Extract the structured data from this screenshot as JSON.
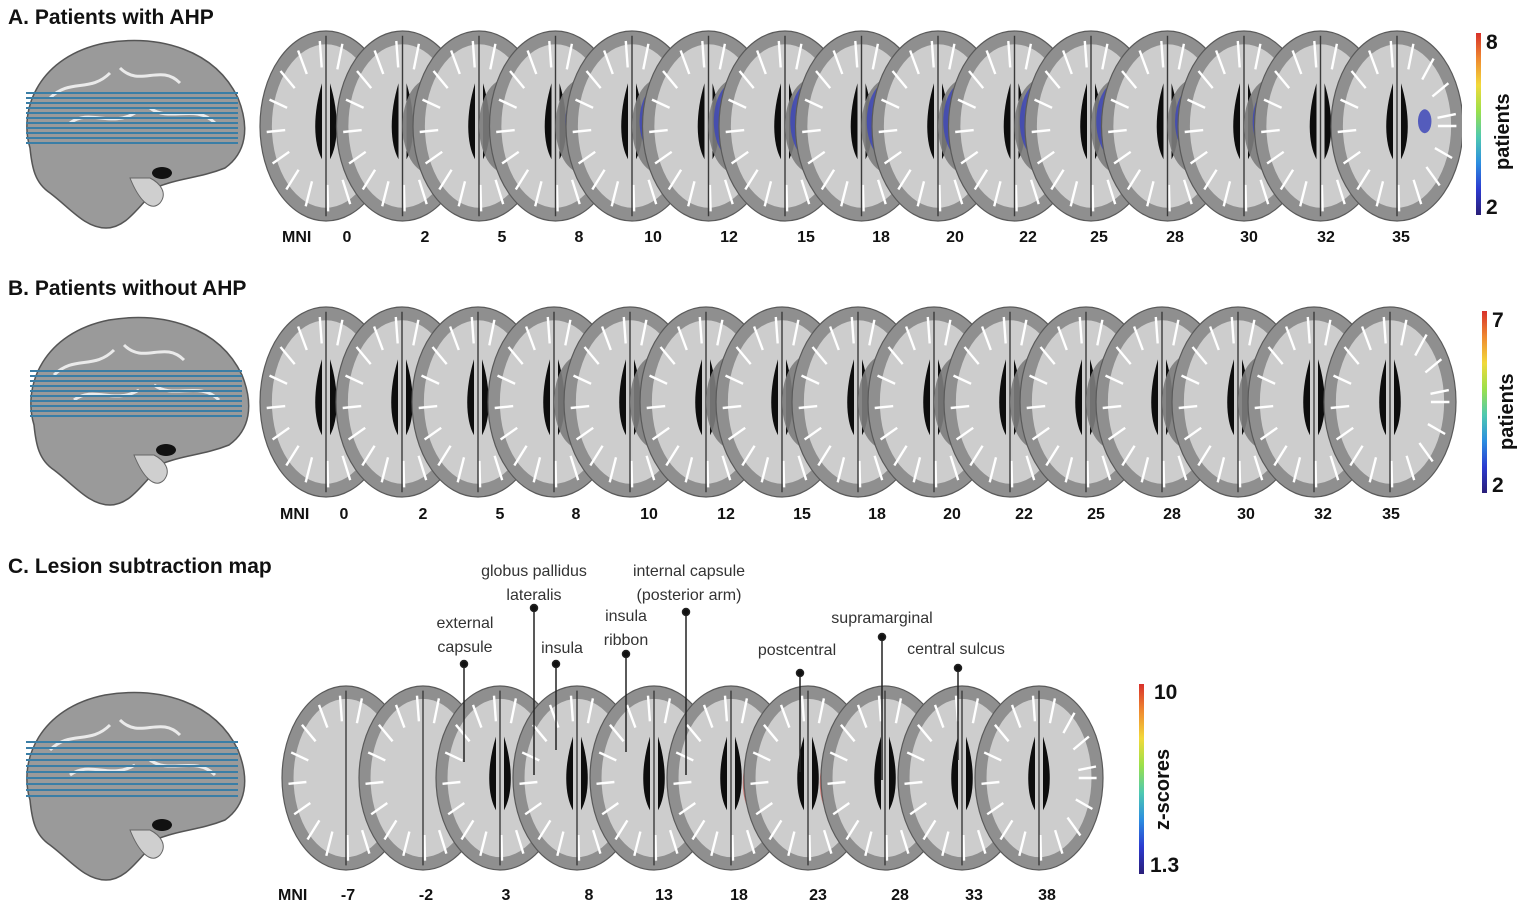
{
  "panels": [
    {
      "id": "A",
      "title": "A. Patients with AHP",
      "mni_label": "MNI",
      "mni": [
        "0",
        "2",
        "5",
        "8",
        "10",
        "12",
        "15",
        "18",
        "20",
        "22",
        "25",
        "28",
        "30",
        "32",
        "35"
      ],
      "colorbar": {
        "title": "patients",
        "max": "8",
        "min": "2"
      }
    },
    {
      "id": "B",
      "title": "B. Patients without AHP",
      "mni_label": "MNI",
      "mni": [
        "0",
        "2",
        "5",
        "8",
        "10",
        "12",
        "15",
        "18",
        "20",
        "22",
        "25",
        "28",
        "30",
        "32",
        "35"
      ],
      "colorbar": {
        "title": "patients",
        "max": "7",
        "min": "2"
      }
    },
    {
      "id": "C",
      "title": "C. Lesion subtraction map",
      "mni_label": "MNI",
      "mni": [
        "-7",
        "-2",
        "3",
        "8",
        "13",
        "18",
        "23",
        "28",
        "33",
        "38"
      ],
      "colorbar": {
        "title": "z-scores",
        "max": "10",
        "min": "1.3"
      }
    }
  ],
  "annotations": [
    {
      "lines": [
        "external",
        "capsule"
      ]
    },
    {
      "lines": [
        "globus pallidus",
        "lateralis"
      ]
    },
    {
      "lines": [
        "insula"
      ]
    },
    {
      "lines": [
        "insula",
        "ribbon"
      ]
    },
    {
      "lines": [
        "internal capsule",
        "(posterior arm)"
      ]
    },
    {
      "lines": [
        "postcentral"
      ]
    },
    {
      "lines": [
        "supramarginal"
      ]
    },
    {
      "lines": [
        "central sulcus"
      ]
    }
  ],
  "colors": {
    "colormap": [
      "#2a1e78",
      "#2c3bd0",
      "#2c8ee0",
      "#4fc9b0",
      "#9be04a",
      "#f2d93a",
      "#ef8a30",
      "#d8312b"
    ],
    "slice_lines": "#3a7ea6",
    "brain_gray": "#8c8c8c",
    "lesion_overlay_A": "#3e48b8",
    "lesion_core": "#6fb2e8",
    "lesion_red": "#d44a45"
  }
}
